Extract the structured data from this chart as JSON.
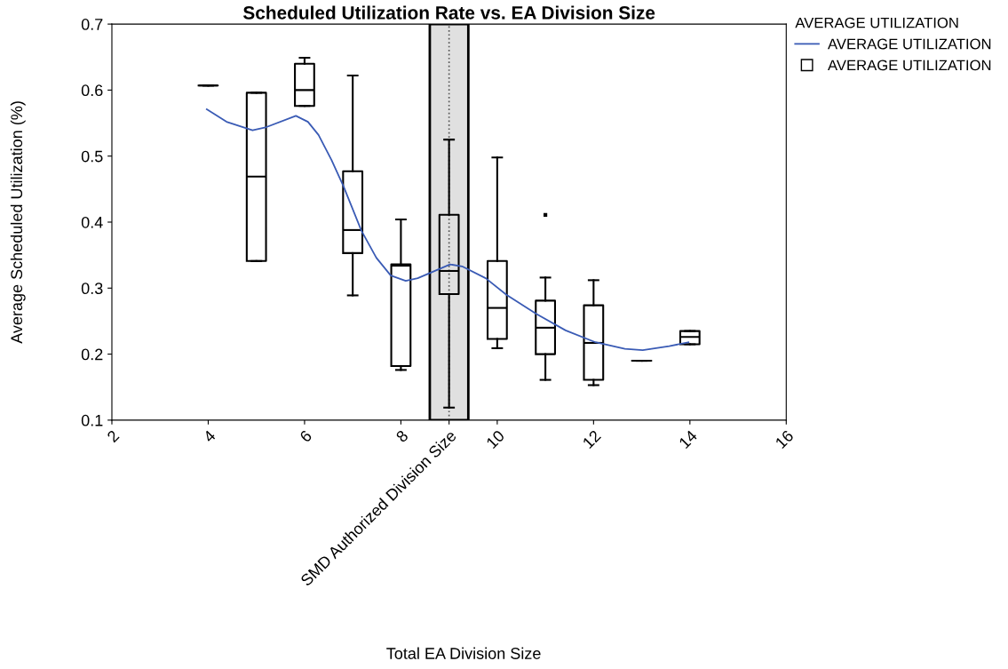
{
  "chart_data": {
    "type": "box",
    "title": "Scheduled Utilization Rate vs. EA Division Size",
    "xlabel": "Total EA Division Size",
    "ylabel": "Average Scheduled Utilization (%)",
    "legend_title": "AVERAGE UTILIZATION",
    "legend": "top right",
    "grid": false,
    "xlim": [
      2,
      16
    ],
    "xticks": [
      2,
      4,
      6,
      8,
      {
        "value": 9,
        "label": "SMD Authorized Division Size"
      },
      10,
      12,
      14,
      16
    ],
    "ylim": [
      0.1,
      0.7
    ],
    "yticks": [
      0.1,
      0.2,
      0.3,
      0.4,
      0.5,
      0.6,
      0.7
    ],
    "bands": [
      {
        "axis": "x",
        "from": 8.6,
        "to": 9.4,
        "color": "#e0e0e0"
      }
    ],
    "ref_lines": [
      {
        "axis": "x",
        "value": 9,
        "line_style": "dotted",
        "color": "#555555"
      }
    ],
    "series": [
      {
        "name": "AVERAGE UTILIZATION",
        "type": "line",
        "color": "#3a5bb5",
        "marker": "none",
        "line_style": "solid",
        "x": [
          3.97,
          4.38,
          4.92,
          5.21,
          5.82,
          6.07,
          6.29,
          6.56,
          6.81,
          7.18,
          7.49,
          7.79,
          8.1,
          8.35,
          9.02,
          9.27,
          9.76,
          10.19,
          10.81,
          11.42,
          12.04,
          12.65,
          13.02,
          13.57,
          13.97
        ],
        "values": [
          0.571,
          0.552,
          0.539,
          0.544,
          0.561,
          0.552,
          0.532,
          0.494,
          0.454,
          0.387,
          0.346,
          0.319,
          0.311,
          0.315,
          0.336,
          0.333,
          0.315,
          0.29,
          0.261,
          0.236,
          0.218,
          0.208,
          0.206,
          0.212,
          0.218
        ]
      },
      {
        "name": "AVERAGE UTILIZATION",
        "color": "#000000",
        "x": [
          4,
          5,
          6,
          7,
          8,
          9,
          10,
          11,
          12,
          13,
          14
        ],
        "boxes": [
          {
            "low": 0.607,
            "q1": 0.607,
            "median": 0.607,
            "q3": 0.607,
            "high": 0.607
          },
          {
            "low": 0.341,
            "q1": 0.341,
            "median": 0.469,
            "q3": 0.596,
            "high": 0.596
          },
          {
            "low": 0.576,
            "q1": 0.576,
            "median": 0.6,
            "q3": 0.64,
            "high": 0.649
          },
          {
            "low": 0.289,
            "q1": 0.353,
            "median": 0.388,
            "q3": 0.477,
            "high": 0.622
          },
          {
            "low": 0.176,
            "q1": 0.182,
            "median": 0.334,
            "q3": 0.336,
            "high": 0.404
          },
          {
            "low": 0.119,
            "q1": 0.291,
            "median": 0.326,
            "q3": 0.411,
            "high": 0.525
          },
          {
            "low": 0.209,
            "q1": 0.223,
            "median": 0.27,
            "q3": 0.341,
            "high": 0.498
          },
          {
            "low": 0.161,
            "q1": 0.2,
            "median": 0.24,
            "q3": 0.281,
            "high": 0.316,
            "outliers": [
              0.411
            ]
          },
          {
            "low": 0.153,
            "q1": 0.161,
            "median": 0.217,
            "q3": 0.274,
            "high": 0.312
          },
          {
            "low": 0.19,
            "q1": 0.19,
            "median": 0.19,
            "q3": 0.19,
            "high": 0.19
          },
          {
            "low": 0.215,
            "q1": 0.215,
            "median": 0.226,
            "q3": 0.235,
            "high": 0.235
          }
        ]
      }
    ]
  }
}
